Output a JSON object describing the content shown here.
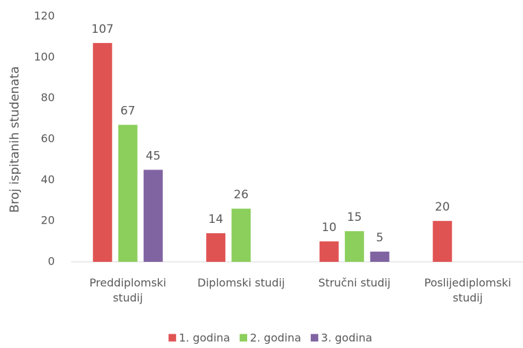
{
  "chart_data": {
    "type": "bar",
    "y_label": "Broj ispitanih studenata",
    "categories": [
      "Preddiplomski studij",
      "Diplomski studij",
      "Stručni studij",
      "Poslijediplomski studij"
    ],
    "series": [
      {
        "name": "1. godina",
        "color": "#e05353",
        "values": [
          107,
          14,
          10,
          20
        ]
      },
      {
        "name": "2. godina",
        "color": "#8ccf5c",
        "values": [
          67,
          26,
          15,
          null
        ]
      },
      {
        "name": "3. godina",
        "color": "#8064a2",
        "values": [
          45,
          null,
          5,
          null
        ]
      }
    ],
    "ylim": [
      0,
      120
    ],
    "yticks": [
      0,
      20,
      40,
      60,
      80,
      100,
      120
    ],
    "grid": false,
    "legend": "bottom"
  }
}
